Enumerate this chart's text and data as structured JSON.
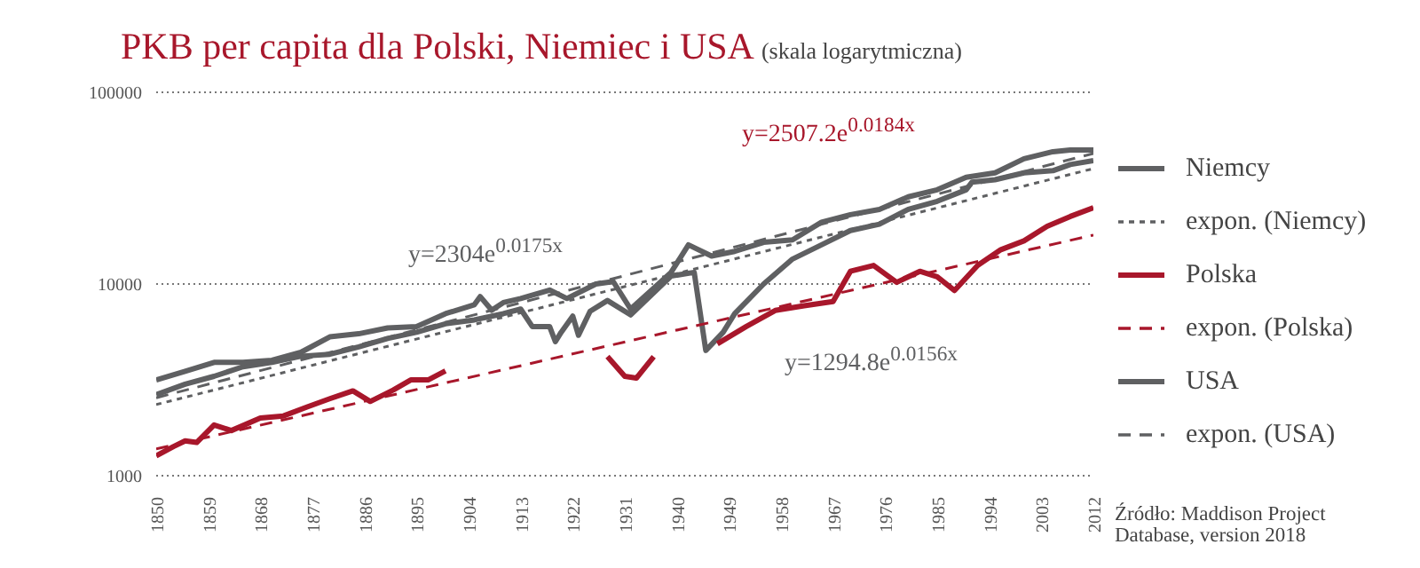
{
  "chart_data": {
    "type": "line",
    "title": "PKB per capita dla Polski, Niemiec i USA",
    "subtitle": "(skala logarytmiczna)",
    "log": "y",
    "grid": "y",
    "legend": "right",
    "marker": "none",
    "xlim": [
      1850,
      2012
    ],
    "xticks": [
      1850,
      1859,
      1868,
      1877,
      1886,
      1895,
      1904,
      1913,
      1922,
      1931,
      1940,
      1949,
      1958,
      1967,
      1976,
      1985,
      1994,
      2003,
      2012
    ],
    "ylim": [
      1000,
      100000
    ],
    "yticks": [
      1000,
      10000,
      100000
    ],
    "series": [
      {
        "name": "Niemcy",
        "color": "#5f6062",
        "line_style": "solid",
        "x": [
          1850,
          1855,
          1860,
          1865,
          1870,
          1875,
          1880,
          1885,
          1890,
          1895,
          1900,
          1905,
          1910,
          1913,
          1915,
          1918,
          1919,
          1920,
          1922,
          1923,
          1925,
          1928,
          1932,
          1936,
          1939,
          1943,
          1945,
          1948,
          1950,
          1955,
          1960,
          1965,
          1970,
          1975,
          1980,
          1985,
          1990,
          1991,
          1995,
          2000,
          2005,
          2008,
          2012
        ],
        "values": [
          2650,
          3000,
          3300,
          3700,
          3900,
          4200,
          4300,
          4700,
          5200,
          5600,
          6200,
          6500,
          7000,
          7400,
          6000,
          6000,
          5000,
          5600,
          6800,
          5400,
          7200,
          8200,
          6900,
          9000,
          11000,
          11500,
          4500,
          5600,
          7000,
          10000,
          13500,
          16000,
          19000,
          20500,
          24500,
          27000,
          31000,
          34000,
          35000,
          38000,
          39000,
          42000,
          44000
        ]
      },
      {
        "name": "expon. (Niemcy)",
        "color": "#5f6062",
        "line_style": "dotted",
        "x": [
          1850,
          2012
        ],
        "values": [
          2350,
          40000
        ]
      },
      {
        "name": "Polska",
        "color": "#a8172b",
        "line_style": "solid",
        "x": [
          1850,
          1853,
          1855,
          1857,
          1860,
          1863,
          1868,
          1872,
          1876,
          1880,
          1884,
          1887,
          1891,
          1894,
          1897,
          1900,
          1910,
          1928,
          1931,
          1933,
          1936,
          1942,
          1947,
          1952,
          1957,
          1962,
          1967,
          1970,
          1974,
          1978,
          1982,
          1985,
          1988,
          1992,
          1996,
          2000,
          2004,
          2008,
          2012
        ],
        "values": [
          1270,
          1420,
          1520,
          1490,
          1840,
          1720,
          2000,
          2050,
          2280,
          2520,
          2770,
          2440,
          2800,
          3160,
          3160,
          3520,
          null,
          4180,
          3300,
          3230,
          4180,
          null,
          4880,
          6000,
          7280,
          7700,
          8100,
          11650,
          12500,
          10200,
          11650,
          10900,
          9250,
          12500,
          15100,
          16800,
          20000,
          22500,
          25000
        ]
      },
      {
        "name": "expon. (Polska)",
        "color": "#a8172b",
        "line_style": "dashed",
        "x": [
          1850,
          2012
        ],
        "values": [
          1380,
          18000
        ]
      },
      {
        "name": "USA",
        "color": "#5f6062",
        "line_style": "solid",
        "x": [
          1850,
          1855,
          1860,
          1865,
          1870,
          1875,
          1880,
          1885,
          1890,
          1895,
          1900,
          1905,
          1906,
          1908,
          1910,
          1913,
          1918,
          1921,
          1926,
          1929,
          1932,
          1936,
          1939,
          1942,
          1946,
          1950,
          1955,
          1960,
          1965,
          1970,
          1975,
          1980,
          1985,
          1990,
          1995,
          2000,
          2005,
          2008,
          2012
        ],
        "values": [
          3160,
          3500,
          3900,
          3900,
          4000,
          4400,
          5300,
          5500,
          5900,
          6000,
          7000,
          7800,
          8600,
          7300,
          8000,
          8400,
          9300,
          8400,
          10000,
          10300,
          7400,
          9500,
          11500,
          16000,
          14000,
          14800,
          16500,
          17000,
          21000,
          23000,
          24500,
          28500,
          31000,
          36000,
          38000,
          45000,
          49000,
          50000,
          50000
        ]
      },
      {
        "name": "expon. (USA)",
        "color": "#5f6062",
        "line_style": "dashed",
        "x": [
          1850,
          2012
        ],
        "values": [
          2550,
          48000
        ]
      }
    ],
    "annotations": [
      "y=2304e$^{0.0175x}$",
      "y=2507.2e$^{0.0184x}$",
      "y=1294.8e$^{0.0156x}$",
      "Źródło: Maddison Project Database, version 2018"
    ]
  }
}
